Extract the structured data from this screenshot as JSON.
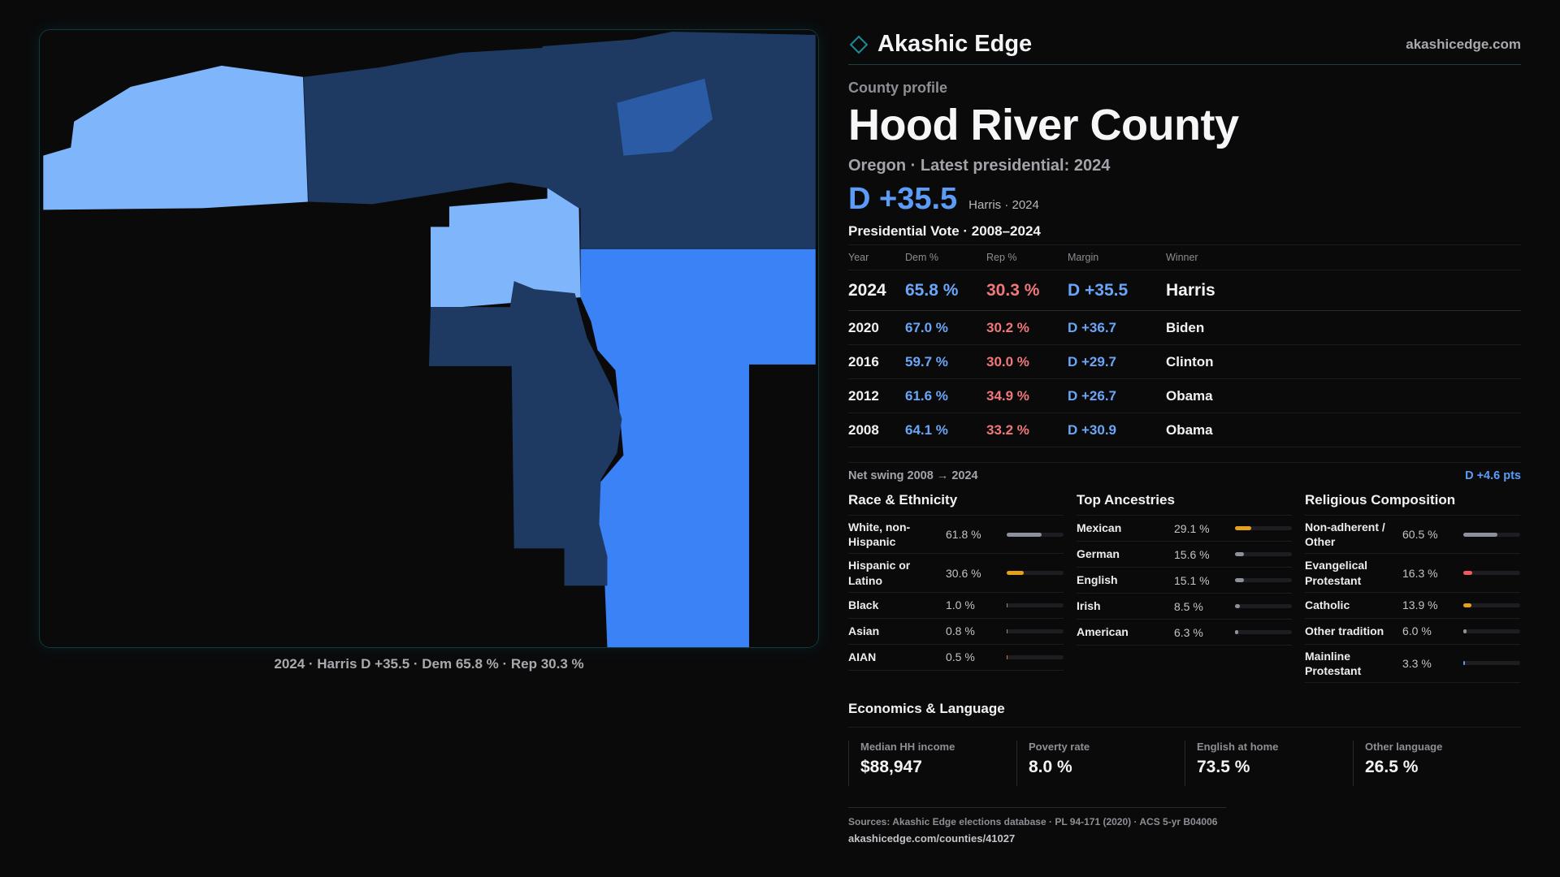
{
  "brand": {
    "name": "Akashic Edge",
    "url": "akashicedge.com",
    "accent": "#1d8a94"
  },
  "profile": {
    "eyebrow": "County profile",
    "county": "Hood River County",
    "subtitle": "Oregon · Latest presidential: 2024",
    "headline_margin": "D +35.5",
    "headline_sub": "Harris · 2024"
  },
  "map": {
    "caption": "2024 · Harris D +35.5 · Dem 65.8 % · Rep 30.3 %",
    "colors": {
      "light": "#7eb5fb",
      "medium": "#2c5ba6",
      "bright": "#3b82f6",
      "dark": "#1e3a62"
    }
  },
  "votes": {
    "title": "Presidential Vote · 2008–2024",
    "headers": {
      "year": "Year",
      "dem": "Dem %",
      "rep": "Rep %",
      "margin": "Margin",
      "winner": "Winner"
    },
    "rows": [
      {
        "year": "2024",
        "dem": "65.8 %",
        "rep": "30.3 %",
        "margin": "D +35.5",
        "winner": "Harris"
      },
      {
        "year": "2020",
        "dem": "67.0 %",
        "rep": "30.2 %",
        "margin": "D +36.7",
        "winner": "Biden"
      },
      {
        "year": "2016",
        "dem": "59.7 %",
        "rep": "30.0 %",
        "margin": "D +29.7",
        "winner": "Clinton"
      },
      {
        "year": "2012",
        "dem": "61.6 %",
        "rep": "34.9 %",
        "margin": "D +26.7",
        "winner": "Obama"
      },
      {
        "year": "2008",
        "dem": "64.1 %",
        "rep": "33.2 %",
        "margin": "D +30.9",
        "winner": "Obama"
      }
    ],
    "swing_label": "Net swing 2008 → 2024",
    "swing_value": "D +4.6 pts"
  },
  "race": {
    "title": "Race & Ethnicity",
    "items": [
      {
        "label": "White, non-Hispanic",
        "value": "61.8 %",
        "pct": 61.8,
        "color": "#8d919c"
      },
      {
        "label": "Hispanic or Latino",
        "value": "30.6 %",
        "pct": 30.6,
        "color": "#e3a21a"
      },
      {
        "label": "Black",
        "value": "1.0 %",
        "pct": 1.0,
        "color": "#8d919c"
      },
      {
        "label": "Asian",
        "value": "0.8 %",
        "pct": 0.8,
        "color": "#8d919c"
      },
      {
        "label": "AIAN",
        "value": "0.5 %",
        "pct": 0.5,
        "color": "#e8703a"
      }
    ]
  },
  "ancestry": {
    "title": "Top Ancestries",
    "items": [
      {
        "label": "Mexican",
        "value": "29.1 %",
        "pct": 29.1,
        "color": "#e3a21a"
      },
      {
        "label": "German",
        "value": "15.6 %",
        "pct": 15.6,
        "color": "#8d919c"
      },
      {
        "label": "English",
        "value": "15.1 %",
        "pct": 15.1,
        "color": "#8d919c"
      },
      {
        "label": "Irish",
        "value": "8.5 %",
        "pct": 8.5,
        "color": "#8d919c"
      },
      {
        "label": "American",
        "value": "6.3 %",
        "pct": 6.3,
        "color": "#8d919c"
      }
    ]
  },
  "religion": {
    "title": "Religious Composition",
    "items": [
      {
        "label": "Non-adherent / Other",
        "value": "60.5 %",
        "pct": 60.5,
        "color": "#8d919c"
      },
      {
        "label": "Evangelical Protestant",
        "value": "16.3 %",
        "pct": 16.3,
        "color": "#ef5a5f"
      },
      {
        "label": "Catholic",
        "value": "13.9 %",
        "pct": 13.9,
        "color": "#e3a21a"
      },
      {
        "label": "Other tradition",
        "value": "6.0 %",
        "pct": 6.0,
        "color": "#8d919c"
      },
      {
        "label": "Mainline Protestant",
        "value": "3.3 %",
        "pct": 3.3,
        "color": "#5b9cf6"
      }
    ]
  },
  "economics": {
    "title": "Economics & Language",
    "cells": [
      {
        "label": "Median HH income",
        "value": "$88,947"
      },
      {
        "label": "Poverty rate",
        "value": "8.0 %"
      },
      {
        "label": "English at home",
        "value": "73.5 %"
      },
      {
        "label": "Other language",
        "value": "26.5 %"
      }
    ]
  },
  "sources": {
    "line": "Sources: Akashic Edge elections database · PL 94-171 (2020) · ACS 5-yr B04006",
    "url": "akashicedge.com/counties/41027"
  }
}
